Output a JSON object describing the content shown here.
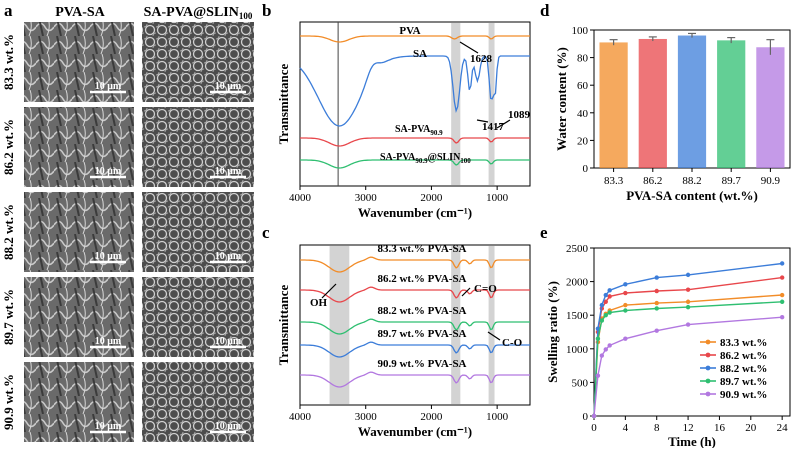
{
  "colors": {
    "orange": "#f28c28",
    "blue": "#3c7dd9",
    "red": "#e8474b",
    "green": "#2fbf71",
    "purple": "#b278e0",
    "grey_band": "#c8c8c8"
  },
  "panel_a": {
    "letter": "a",
    "col_headers": [
      "PVA-SA",
      "SA-PVA@SLIN"
    ],
    "col_header_sub": "100",
    "row_labels": [
      "83.3 wt.%",
      "86.2 wt.%",
      "88.2 wt.%",
      "89.7 wt.%",
      "90.9 wt.%"
    ],
    "scale_text": "10 μm"
  },
  "chart_data": [
    {
      "panel": "b",
      "type": "line",
      "title": "",
      "xlabel": "Wavenumber (cm⁻¹)",
      "ylabel": "Transmittance",
      "xlim": [
        4000,
        500
      ],
      "x_ticks": [
        "4000",
        "3000",
        "2000",
        "1000"
      ],
      "series": [
        {
          "name": "PVA",
          "label_main": "PVA",
          "label_sub": "",
          "label_tail": "",
          "color": "orange"
        },
        {
          "name": "SA",
          "label_main": "SA",
          "label_sub": "",
          "label_tail": "",
          "color": "blue"
        },
        {
          "name": "SA-PVA90.9",
          "label_main": "SA-PVA",
          "label_sub": "90.9",
          "label_tail": "",
          "color": "red"
        },
        {
          "name": "SA-PVA90.9@SLIN100",
          "label_main": "SA-PVA",
          "label_sub": "90.9",
          "label_tail": "@SLIN",
          "label_sub2": "100",
          "color": "green"
        }
      ],
      "annotations": [
        "1628",
        "1417",
        "1089"
      ],
      "vline_x": 3420,
      "bands": [
        [
          1700,
          1560
        ],
        [
          1130,
          1040
        ]
      ]
    },
    {
      "panel": "c",
      "type": "line",
      "title": "",
      "xlabel": "Wavenumber (cm⁻¹)",
      "ylabel": "Transmittance",
      "xlim": [
        4000,
        500
      ],
      "x_ticks": [
        "4000",
        "3000",
        "2000",
        "1000"
      ],
      "series": [
        {
          "name": "83.3 wt.% PVA-SA",
          "color": "orange"
        },
        {
          "name": "86.2 wt.% PVA-SA",
          "color": "red"
        },
        {
          "name": "88.2 wt.% PVA-SA",
          "color": "green"
        },
        {
          "name": "89.7 wt.% PVA-SA",
          "color": "blue"
        },
        {
          "name": "90.9 wt.% PVA-SA",
          "color": "purple"
        }
      ],
      "annotations": [
        "OH",
        "C=O",
        "C-O"
      ],
      "bands": [
        [
          3550,
          3250
        ],
        [
          1700,
          1560
        ],
        [
          1130,
          1040
        ]
      ]
    },
    {
      "panel": "d",
      "type": "bar",
      "title": "",
      "xlabel": "PVA-SA content (wt.%)",
      "ylabel": "Water content (%)",
      "categories": [
        "83.3",
        "86.2",
        "88.2",
        "89.7",
        "90.9"
      ],
      "values": [
        91,
        93.5,
        96,
        92.5,
        87.5
      ],
      "errors": [
        2.0,
        1.5,
        1.5,
        2.0,
        5.5
      ],
      "colors": [
        "orange",
        "red",
        "blue",
        "green",
        "purple"
      ],
      "ylim": [
        0,
        100
      ],
      "y_ticks": [
        "0",
        "20",
        "40",
        "60",
        "80",
        "100"
      ]
    },
    {
      "panel": "e",
      "type": "line",
      "title": "",
      "xlabel": "Time (h)",
      "ylabel": "Swelling ratio (%)",
      "xlim": [
        0,
        25
      ],
      "ylim": [
        0,
        2500
      ],
      "x_ticks": [
        "0",
        "4",
        "8",
        "12",
        "16",
        "20",
        "24"
      ],
      "y_ticks": [
        "0",
        "500",
        "1000",
        "1500",
        "2000",
        "2500"
      ],
      "x": [
        0,
        0.5,
        1,
        1.5,
        2,
        4,
        8,
        12,
        24
      ],
      "series": [
        {
          "name": "83.3 wt.%",
          "values": [
            0,
            1100,
            1450,
            1520,
            1570,
            1650,
            1680,
            1700,
            1800
          ],
          "color": "orange"
        },
        {
          "name": "86.2 wt.%",
          "values": [
            0,
            1250,
            1600,
            1700,
            1780,
            1830,
            1860,
            1880,
            2060
          ],
          "color": "red"
        },
        {
          "name": "88.2 wt.%",
          "values": [
            0,
            1300,
            1650,
            1800,
            1870,
            1960,
            2060,
            2100,
            2270
          ],
          "color": "blue"
        },
        {
          "name": "89.7 wt.%",
          "values": [
            0,
            1150,
            1420,
            1500,
            1540,
            1570,
            1600,
            1620,
            1700
          ],
          "color": "green"
        },
        {
          "name": "90.9 wt.%",
          "values": [
            0,
            600,
            900,
            990,
            1050,
            1150,
            1270,
            1360,
            1470
          ],
          "color": "purple"
        }
      ]
    }
  ]
}
